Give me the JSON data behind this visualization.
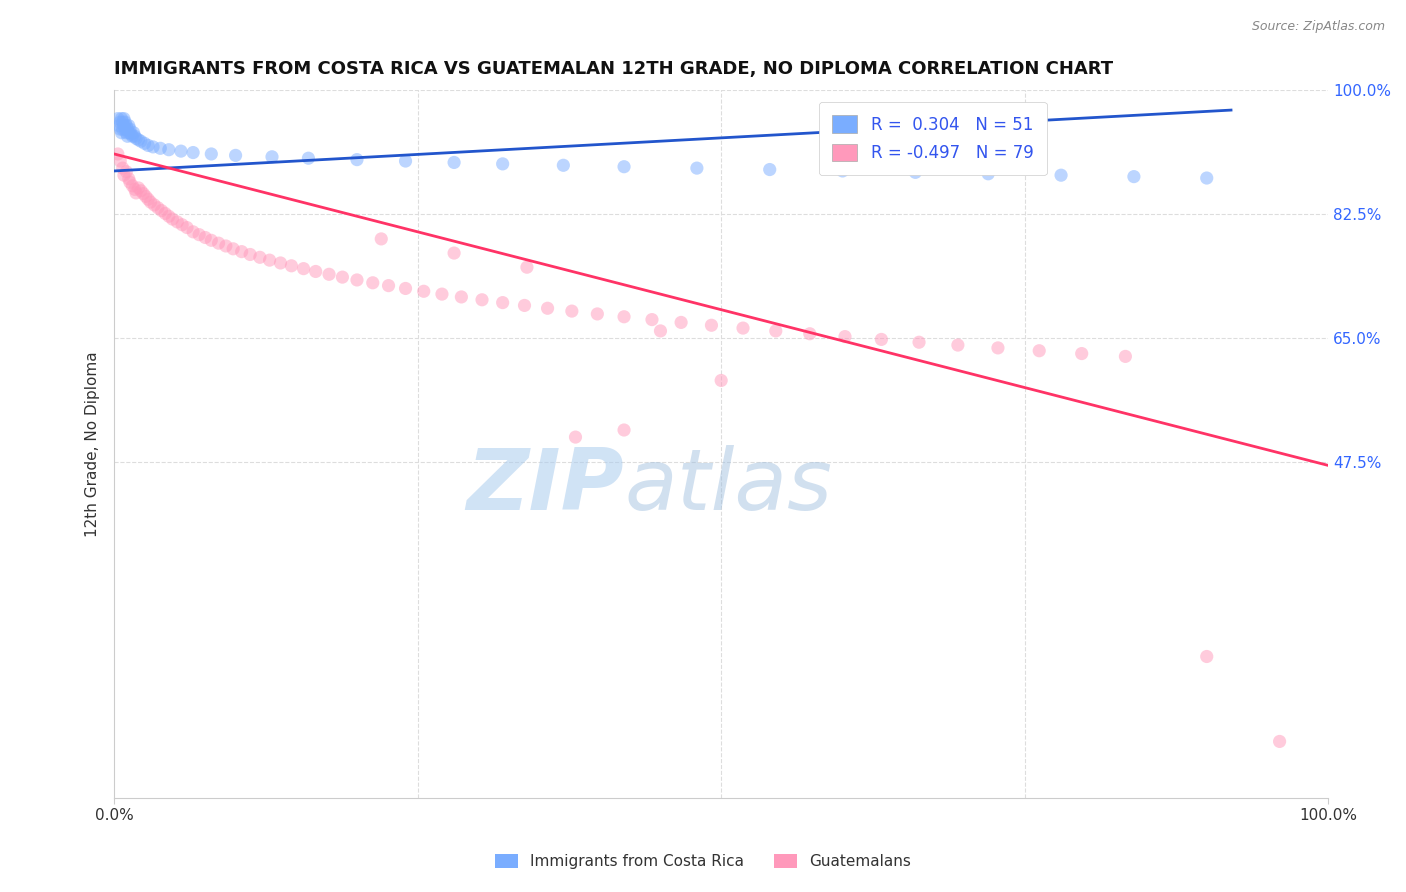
{
  "title": "IMMIGRANTS FROM COSTA RICA VS GUATEMALAN 12TH GRADE, NO DIPLOMA CORRELATION CHART",
  "source": "Source: ZipAtlas.com",
  "ylabel": "12th Grade, No Diploma",
  "xlim": [
    0.0,
    1.0
  ],
  "ylim": [
    0.0,
    1.0
  ],
  "xtick_labels": [
    "0.0%",
    "100.0%"
  ],
  "ytick_labels_right": [
    "100.0%",
    "82.5%",
    "65.0%",
    "47.5%"
  ],
  "ytick_positions_right": [
    1.0,
    0.825,
    0.65,
    0.475
  ],
  "legend_r1": "R =  0.304",
  "legend_n1": "N = 51",
  "legend_r2": "R = -0.497",
  "legend_n2": "N = 79",
  "color_blue": "#7AADFF",
  "color_pink": "#FF99BB",
  "color_blue_line": "#2255CC",
  "color_pink_line": "#FF3366",
  "color_legend_text": "#3355EE",
  "watermark_zip": "ZIP",
  "watermark_atlas": "atlas",
  "watermark_color_zip": "#AACCEE",
  "watermark_color_atlas": "#99BBDD",
  "label_costa_rica": "Immigrants from Costa Rica",
  "label_guatemalans": "Guatemalans",
  "blue_dots_x": [
    0.003,
    0.004,
    0.005,
    0.005,
    0.006,
    0.006,
    0.007,
    0.007,
    0.008,
    0.008,
    0.009,
    0.009,
    0.01,
    0.01,
    0.011,
    0.011,
    0.012,
    0.012,
    0.013,
    0.014,
    0.015,
    0.016,
    0.017,
    0.018,
    0.02,
    0.022,
    0.025,
    0.028,
    0.032,
    0.038,
    0.045,
    0.055,
    0.065,
    0.08,
    0.1,
    0.13,
    0.16,
    0.2,
    0.24,
    0.28,
    0.32,
    0.37,
    0.42,
    0.48,
    0.54,
    0.6,
    0.66,
    0.72,
    0.78,
    0.84,
    0.9
  ],
  "blue_dots_y": [
    0.96,
    0.95,
    0.955,
    0.945,
    0.96,
    0.94,
    0.955,
    0.945,
    0.96,
    0.95,
    0.945,
    0.955,
    0.95,
    0.94,
    0.945,
    0.935,
    0.95,
    0.94,
    0.945,
    0.938,
    0.935,
    0.94,
    0.935,
    0.932,
    0.93,
    0.928,
    0.925,
    0.922,
    0.92,
    0.918,
    0.916,
    0.914,
    0.912,
    0.91,
    0.908,
    0.906,
    0.904,
    0.902,
    0.9,
    0.898,
    0.896,
    0.894,
    0.892,
    0.89,
    0.888,
    0.886,
    0.884,
    0.882,
    0.88,
    0.878,
    0.876
  ],
  "pink_dots_x": [
    0.003,
    0.005,
    0.007,
    0.008,
    0.01,
    0.012,
    0.013,
    0.015,
    0.017,
    0.018,
    0.02,
    0.022,
    0.024,
    0.026,
    0.028,
    0.03,
    0.033,
    0.036,
    0.039,
    0.042,
    0.045,
    0.048,
    0.052,
    0.056,
    0.06,
    0.065,
    0.07,
    0.075,
    0.08,
    0.086,
    0.092,
    0.098,
    0.105,
    0.112,
    0.12,
    0.128,
    0.137,
    0.146,
    0.156,
    0.166,
    0.177,
    0.188,
    0.2,
    0.213,
    0.226,
    0.24,
    0.255,
    0.27,
    0.286,
    0.303,
    0.32,
    0.338,
    0.357,
    0.377,
    0.398,
    0.42,
    0.443,
    0.467,
    0.492,
    0.518,
    0.545,
    0.573,
    0.602,
    0.632,
    0.663,
    0.695,
    0.728,
    0.762,
    0.797,
    0.833,
    0.34,
    0.28,
    0.22,
    0.45,
    0.5,
    0.38,
    0.9,
    0.96,
    0.42
  ],
  "pink_dots_y": [
    0.91,
    0.9,
    0.89,
    0.88,
    0.885,
    0.875,
    0.87,
    0.865,
    0.86,
    0.855,
    0.862,
    0.858,
    0.854,
    0.85,
    0.846,
    0.842,
    0.838,
    0.834,
    0.83,
    0.826,
    0.822,
    0.818,
    0.814,
    0.81,
    0.806,
    0.8,
    0.796,
    0.792,
    0.788,
    0.784,
    0.78,
    0.776,
    0.772,
    0.768,
    0.764,
    0.76,
    0.756,
    0.752,
    0.748,
    0.744,
    0.74,
    0.736,
    0.732,
    0.728,
    0.724,
    0.72,
    0.716,
    0.712,
    0.708,
    0.704,
    0.7,
    0.696,
    0.692,
    0.688,
    0.684,
    0.68,
    0.676,
    0.672,
    0.668,
    0.664,
    0.66,
    0.656,
    0.652,
    0.648,
    0.644,
    0.64,
    0.636,
    0.632,
    0.628,
    0.624,
    0.75,
    0.77,
    0.79,
    0.66,
    0.59,
    0.51,
    0.2,
    0.08,
    0.52
  ],
  "blue_line_x": [
    0.0,
    0.92
  ],
  "blue_line_y": [
    0.886,
    0.972
  ],
  "pink_line_x": [
    0.0,
    1.0
  ],
  "pink_line_y": [
    0.91,
    0.47
  ],
  "grid_color": "#DDDDDD",
  "background_color": "#FFFFFF",
  "title_fontsize": 13,
  "axis_label_fontsize": 11,
  "tick_fontsize": 11,
  "dot_size": 90,
  "dot_alpha": 0.5
}
